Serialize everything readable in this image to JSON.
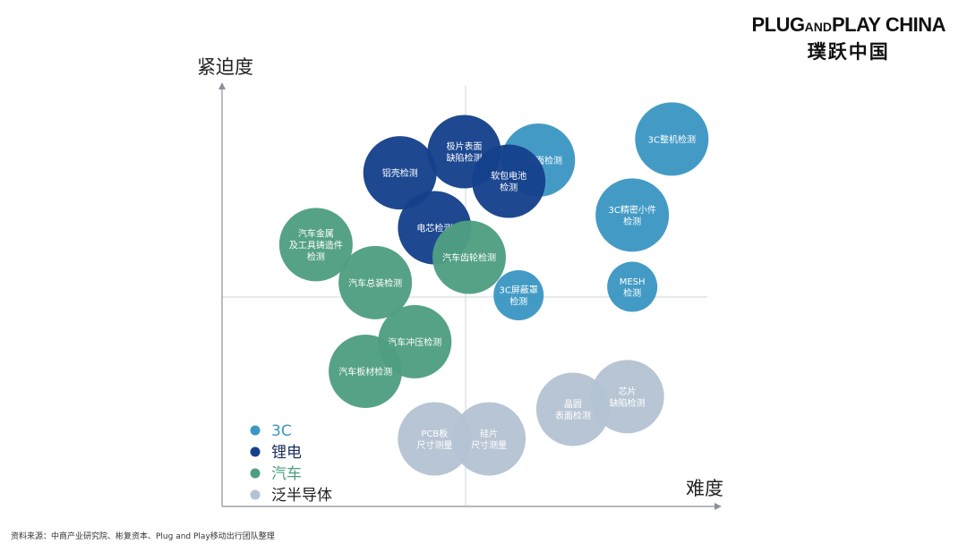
{
  "logo": {
    "brand_big1": "PLUG",
    "brand_small": "AND",
    "brand_big2": "PLAY CHINA",
    "brand_cn": "璞跃中国"
  },
  "source_note": "资料来源：中商产业研究院、彬复资本、Plug and Play移动出行团队整理",
  "chart_data": {
    "type": "scatter",
    "title": "",
    "xlabel": "难度",
    "ylabel": "紧迫度",
    "grid": false,
    "legend_position": "bottom-left",
    "series": [
      {
        "name": "3C",
        "color": "#3b97c3",
        "points": [
          {
            "label": [
              "3C镜面检测"
            ],
            "x": 6.4,
            "y": 8.2
          },
          {
            "label": [
              "3C整机检测"
            ],
            "x": 9.1,
            "y": 8.7
          },
          {
            "label": [
              "3C精密小件",
              "检测"
            ],
            "x": 8.3,
            "y": 6.9
          },
          {
            "label": [
              "MESH",
              "检测"
            ],
            "x": 8.3,
            "y": 5.2
          },
          {
            "label": [
              "3C屏蔽罩",
              "检测"
            ],
            "x": 6.0,
            "y": 5.0
          }
        ]
      },
      {
        "name": "锂电",
        "color": "#15418b",
        "points": [
          {
            "label": [
              "铝壳检测"
            ],
            "x": 3.6,
            "y": 7.9
          },
          {
            "label": [
              "极片表面",
              "缺陷检测"
            ],
            "x": 4.9,
            "y": 8.4
          },
          {
            "label": [
              "软包电池",
              "检测"
            ],
            "x": 5.8,
            "y": 7.7
          },
          {
            "label": [
              "电芯检测"
            ],
            "x": 4.3,
            "y": 6.6
          }
        ]
      },
      {
        "name": "汽车",
        "color": "#4f9e81",
        "points": [
          {
            "label": [
              "汽车金属",
              "及工具铸造件",
              "检测"
            ],
            "x": 1.9,
            "y": 6.2
          },
          {
            "label": [
              "汽车齿轮检测"
            ],
            "x": 5.0,
            "y": 5.9
          },
          {
            "label": [
              "汽车总装检测"
            ],
            "x": 3.1,
            "y": 5.3
          },
          {
            "label": [
              "汽车冲压检测"
            ],
            "x": 3.9,
            "y": 3.9
          },
          {
            "label": [
              "汽车板材检测"
            ],
            "x": 2.9,
            "y": 3.2
          }
        ]
      },
      {
        "name": "泛半导体",
        "color": "#b4c3d2",
        "points": [
          {
            "label": [
              "PCB板",
              "尺寸测量"
            ],
            "x": 4.3,
            "y": 1.6
          },
          {
            "label": [
              "硅片",
              "尺寸测量"
            ],
            "x": 5.4,
            "y": 1.6
          },
          {
            "label": [
              "晶圆",
              "表面检测"
            ],
            "x": 7.1,
            "y": 2.3
          },
          {
            "label": [
              "芯片",
              "缺陷检测"
            ],
            "x": 8.2,
            "y": 2.6
          }
        ]
      }
    ]
  }
}
